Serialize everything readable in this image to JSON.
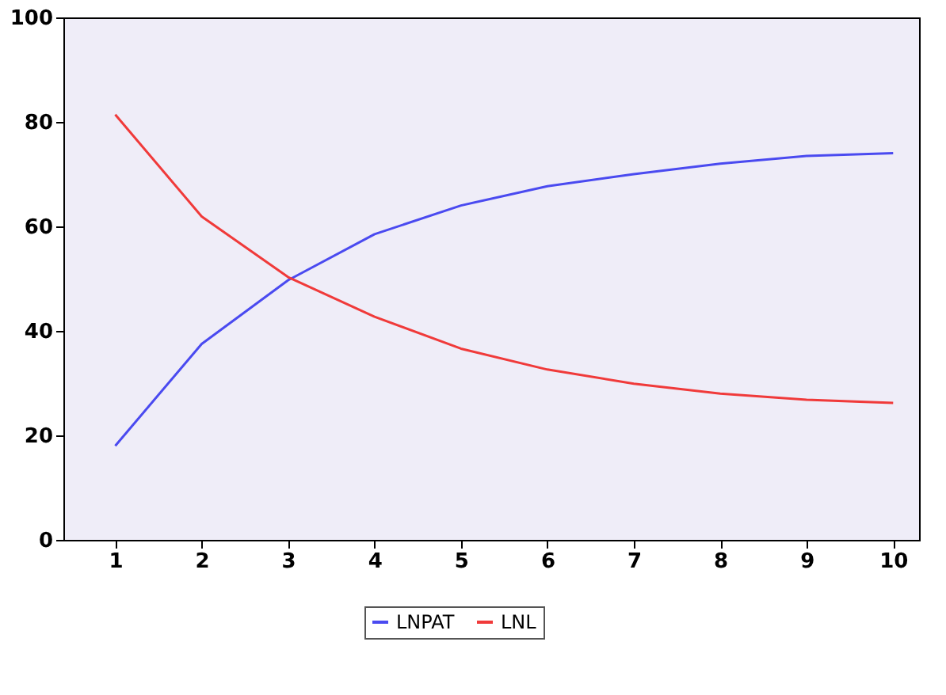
{
  "chart_data": {
    "type": "line",
    "x": [
      1,
      2,
      3,
      4,
      5,
      6,
      7,
      8,
      9,
      10
    ],
    "series": [
      {
        "name": "LNPAT",
        "color": "#4a4af0",
        "values": [
          18,
          37.5,
          49.7,
          58.5,
          64,
          67.7,
          70,
          72,
          73.5,
          74
        ]
      },
      {
        "name": "LNL",
        "color": "#f03a3a",
        "values": [
          81.4,
          61.9,
          50.3,
          42.7,
          36.6,
          32.6,
          29.9,
          28,
          26.8,
          26.2
        ]
      }
    ],
    "xlim": [
      0.4,
      10.3
    ],
    "xticks": [
      1,
      2,
      3,
      4,
      5,
      6,
      7,
      8,
      9,
      10
    ],
    "ylim": [
      0,
      100
    ],
    "yticks": [
      0,
      20,
      40,
      60,
      80,
      100
    ],
    "grid": false,
    "legend": "bottom",
    "marker": "none",
    "line_style": "solid"
  }
}
